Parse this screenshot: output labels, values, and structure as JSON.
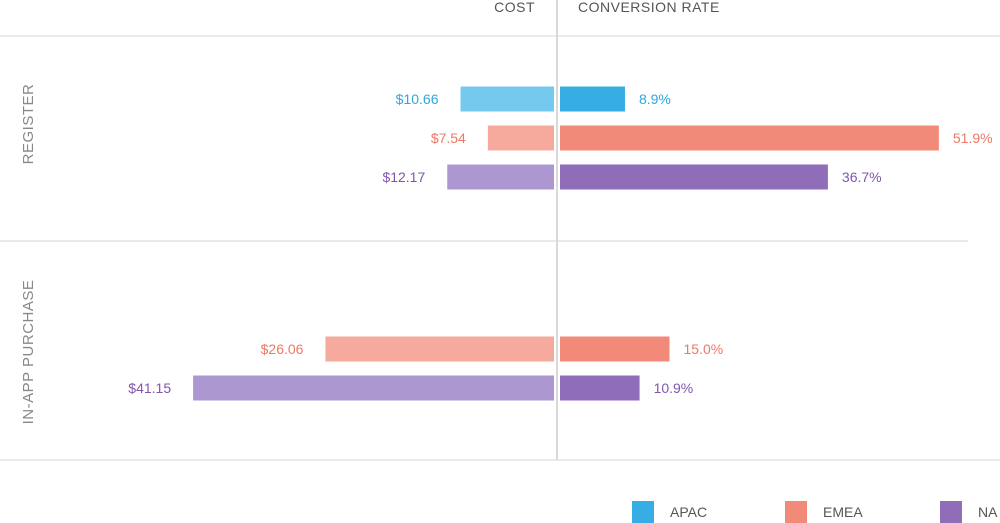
{
  "chart_data": {
    "type": "bar",
    "orientation": "horizontal-diverging",
    "headers": {
      "left": "COST",
      "right": "CONVERSION RATE"
    },
    "groups": [
      {
        "label": "REGISTER",
        "rows": [
          {
            "region": "APAC",
            "cost": 10.66,
            "cost_label": "$10.66",
            "conversion": 8.9,
            "conversion_label": "8.9%"
          },
          {
            "region": "EMEA",
            "cost": 7.54,
            "cost_label": "$7.54",
            "conversion": 51.9,
            "conversion_label": "51.9%"
          },
          {
            "region": "NA",
            "cost": 12.17,
            "cost_label": "$12.17",
            "conversion": 36.7,
            "conversion_label": "36.7%"
          }
        ]
      },
      {
        "label": "IN-APP PURCHASE",
        "rows": [
          {
            "region": "EMEA",
            "cost": 26.06,
            "cost_label": "$26.06",
            "conversion": 15.0,
            "conversion_label": "15.0%"
          },
          {
            "region": "NA",
            "cost": 41.15,
            "cost_label": "$41.15",
            "conversion": 10.9,
            "conversion_label": "10.9%"
          }
        ]
      }
    ],
    "legend": {
      "placement": "bottom-right",
      "entries": [
        "APAC",
        "EMEA",
        "NA"
      ]
    },
    "colors": {
      "APAC": {
        "cost": "#75c9ef",
        "conversion": "#37aee3",
        "text": "#2ea7df"
      },
      "EMEA": {
        "cost": "#f6aa9e",
        "conversion": "#f28a7a",
        "text": "#ef7864"
      },
      "NA": {
        "cost": "#ad97d0",
        "conversion": "#8f6db8",
        "text": "#8156b0"
      }
    }
  }
}
